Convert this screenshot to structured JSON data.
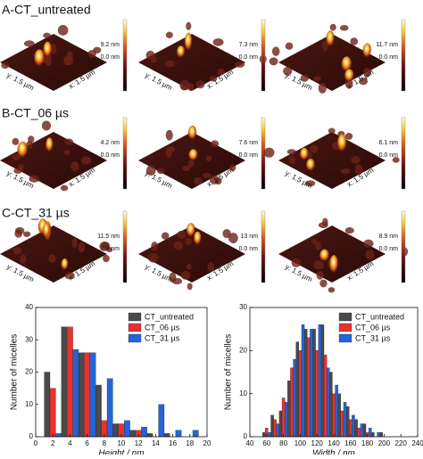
{
  "rows": [
    {
      "label": "A-CT_untreated",
      "images": [
        {
          "max": "9.2 nm",
          "min": "0.0 nm",
          "y_axis": "y: 1.5 µm",
          "x_axis": "x: 1.5 µm"
        },
        {
          "max": "7.3 nm",
          "min": "0.0 nm",
          "y_axis": "y: 1.5 µm",
          "x_axis": "x: 1.5 µm"
        },
        {
          "max": "11.7 nm",
          "min": "0.0 nm",
          "y_axis": "y: 1.5 µm",
          "x_axis": "x: 1.5 µm"
        }
      ]
    },
    {
      "label": "B-CT_06 µs",
      "images": [
        {
          "max": "4.2 nm",
          "min": "0.0 nm",
          "y_axis": "y: 1.5 µm",
          "x_axis": "x: 1.5 µm"
        },
        {
          "max": "7.6 nm",
          "min": "0.0 nm",
          "y_axis": "y: 1.5 µm",
          "x_axis": "x: 1.5 µm"
        },
        {
          "max": "6.1 nm",
          "min": "0.0 nm",
          "y_axis": "y: 1.5 µm",
          "x_axis": "x: 1.5 µm"
        }
      ]
    },
    {
      "label": "C-CT_31 µs",
      "images": [
        {
          "max": "11.5 nm",
          "min": "0.0 nm",
          "y_axis": "y: 1.5 µm",
          "x_axis": "x: 1.5 µm"
        },
        {
          "max": "13 nm",
          "min": "0.0 nm",
          "y_axis": "y: 1.5 µm",
          "x_axis": "x: 1.5 µm"
        },
        {
          "max": "8.9 nm",
          "min": "0.0 nm",
          "y_axis": "y: 1.5 µm",
          "x_axis": "x: 1.5 µm"
        }
      ]
    }
  ],
  "chart_data": [
    {
      "type": "bar",
      "x_label": "Height / nm",
      "y_label": "Number of micelles",
      "x": [
        2,
        4,
        6,
        8,
        10,
        12,
        14,
        16,
        18
      ],
      "bin_width": 2,
      "series": [
        {
          "name": "CT_untreated",
          "color": "#4a4a4a",
          "values": [
            20,
            34,
            26,
            16,
            4,
            2,
            1,
            1,
            0
          ]
        },
        {
          "name": "CT_06 µs",
          "color": "#e8322f",
          "values": [
            15,
            34,
            26,
            5,
            4,
            2,
            0,
            0,
            0
          ]
        },
        {
          "name": "CT_31 µs",
          "color": "#2563d9",
          "values": [
            1,
            27,
            26,
            18,
            5,
            3,
            10,
            2,
            2
          ]
        }
      ],
      "xlim": [
        0,
        20
      ],
      "xticks": [
        0,
        2,
        4,
        6,
        8,
        10,
        12,
        14,
        16,
        18,
        20
      ],
      "ylim": [
        0,
        40
      ],
      "yticks": [
        0,
        10,
        20,
        30,
        40
      ],
      "legend": "top-right"
    },
    {
      "type": "bar",
      "x_label": "Width / nm",
      "y_label": "Number of micelles",
      "x": [
        60,
        70,
        80,
        90,
        100,
        110,
        120,
        130,
        140,
        150,
        160,
        170,
        180,
        190,
        200
      ],
      "bin_width": 10,
      "series": [
        {
          "name": "CT_untreated",
          "color": "#4a4a4a",
          "values": [
            1,
            5,
            6,
            13,
            22,
            25,
            25,
            26,
            15,
            10,
            7,
            4,
            3,
            1,
            1
          ]
        },
        {
          "name": "CT_06 µs",
          "color": "#e8322f",
          "values": [
            2,
            4,
            9,
            16,
            20,
            23,
            20,
            19,
            10,
            6,
            4,
            2,
            1,
            0,
            0
          ]
        },
        {
          "name": "CT_31 µs",
          "color": "#2563d9",
          "values": [
            1,
            3,
            8,
            18,
            26,
            25,
            26,
            16,
            12,
            8,
            5,
            3,
            2,
            1,
            0
          ]
        }
      ],
      "xlim": [
        40,
        240
      ],
      "xticks": [
        40,
        60,
        80,
        100,
        120,
        140,
        160,
        180,
        200,
        220,
        240
      ],
      "ylim": [
        0,
        30
      ],
      "yticks": [
        0,
        10,
        20,
        30
      ],
      "legend": "top-right"
    }
  ]
}
